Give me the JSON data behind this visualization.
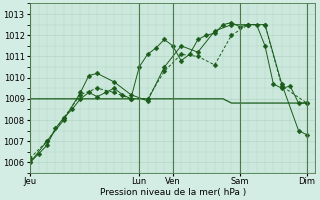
{
  "xlabel": "Pression niveau de la mer( hPa )",
  "ylim": [
    1005.5,
    1013.5
  ],
  "yticks": [
    1006,
    1007,
    1008,
    1009,
    1010,
    1011,
    1012,
    1013
  ],
  "bg_color": "#d4ede4",
  "grid_color": "#aed4c0",
  "line_color": "#1a5c1a",
  "plot_bg": "#cce8dc",
  "day_labels": [
    "Jeu",
    "Lun",
    "Ven",
    "Sam",
    "Dim"
  ],
  "day_x": [
    0,
    13,
    17,
    25,
    33
  ],
  "xlim": [
    0,
    34
  ],
  "series1_x": [
    0,
    1,
    2,
    3,
    4,
    5,
    6,
    7,
    8,
    9,
    10,
    11,
    12,
    13,
    14,
    15,
    16,
    17,
    18,
    19,
    20,
    21,
    22,
    23,
    24,
    25,
    26,
    27,
    28,
    29,
    30,
    31,
    32,
    33
  ],
  "series1_y": [
    1006.0,
    1006.4,
    1006.8,
    1007.6,
    1008.1,
    1008.5,
    1009.0,
    1009.3,
    1009.1,
    1009.3,
    1009.5,
    1009.2,
    1009.0,
    1010.5,
    1011.1,
    1011.4,
    1011.8,
    1011.5,
    1010.8,
    1011.1,
    1011.8,
    1012.0,
    1012.1,
    1012.5,
    1012.6,
    1012.4,
    1012.5,
    1012.5,
    1011.5,
    1009.7,
    1009.5,
    1009.6,
    1008.8,
    1008.8
  ],
  "series2_x": [
    0,
    2,
    4,
    6,
    8,
    10,
    12,
    14,
    16,
    18,
    20,
    22,
    24,
    26,
    28,
    30,
    33
  ],
  "series2_y": [
    1006.2,
    1007.0,
    1008.1,
    1009.2,
    1009.5,
    1009.3,
    1009.0,
    1009.0,
    1010.3,
    1011.1,
    1011.0,
    1010.6,
    1012.0,
    1012.5,
    1012.5,
    1009.6,
    1008.8
  ],
  "series3_x": [
    0,
    2,
    4,
    6,
    7,
    8,
    10,
    12,
    14,
    16,
    18,
    20,
    22,
    24,
    26,
    28,
    30,
    32,
    33
  ],
  "series3_y": [
    1006.0,
    1007.0,
    1008.0,
    1009.3,
    1010.1,
    1010.2,
    1009.8,
    1009.2,
    1008.9,
    1010.5,
    1011.5,
    1011.2,
    1012.2,
    1012.5,
    1012.5,
    1012.5,
    1009.7,
    1007.5,
    1007.3
  ],
  "series4_x": [
    0,
    1,
    2,
    3,
    4,
    5,
    6,
    7,
    8,
    9,
    10,
    11,
    12,
    13,
    14,
    15,
    16,
    17,
    18,
    19,
    20,
    21,
    22,
    23,
    24,
    25,
    26,
    27,
    28,
    29,
    30,
    31,
    32,
    33
  ],
  "series4_y": [
    1009.0,
    1009.0,
    1009.0,
    1009.0,
    1009.0,
    1009.0,
    1009.0,
    1009.0,
    1009.0,
    1009.0,
    1009.0,
    1009.0,
    1009.0,
    1009.0,
    1009.0,
    1009.0,
    1009.0,
    1009.0,
    1009.0,
    1009.0,
    1009.0,
    1009.0,
    1009.0,
    1009.0,
    1008.8,
    1008.8,
    1008.8,
    1008.8,
    1008.8,
    1008.8,
    1008.8,
    1008.8,
    1008.8,
    1008.8
  ]
}
